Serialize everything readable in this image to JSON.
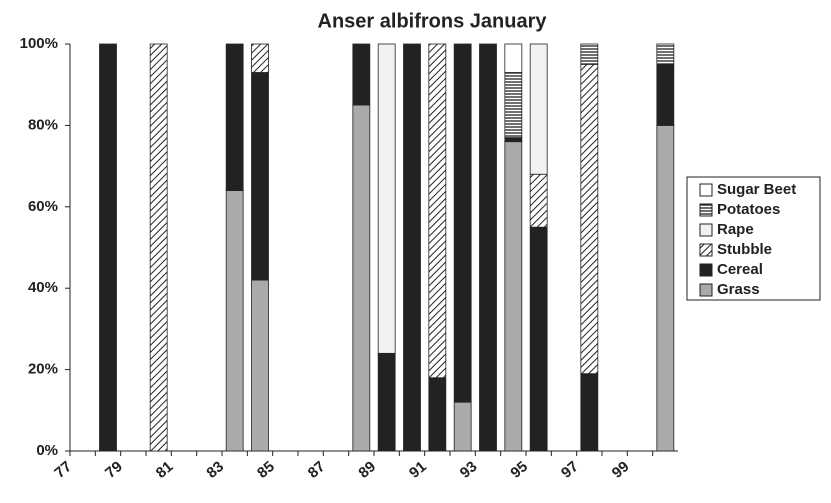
{
  "chart_data": {
    "type": "stacked-bar",
    "title": "Anser albifrons January",
    "categories": [
      "77",
      null,
      "79",
      null,
      "81",
      null,
      "83",
      null,
      "85",
      null,
      "87",
      null,
      "89",
      null,
      "91",
      null,
      "93",
      null,
      "95",
      null,
      "97",
      null,
      "99",
      null
    ],
    "series": [
      {
        "name": "Grass",
        "color": "#aaaaaa",
        "values": [
          null,
          null,
          null,
          null,
          null,
          null,
          64,
          42,
          null,
          null,
          null,
          85,
          null,
          null,
          null,
          12,
          null,
          76,
          null,
          null,
          null,
          null,
          null,
          80
        ]
      },
      {
        "name": "Cereal",
        "color": "#222222",
        "values": [
          null,
          100,
          null,
          null,
          null,
          null,
          36,
          51,
          null,
          null,
          null,
          15,
          24,
          100,
          18,
          88,
          100,
          1,
          55,
          null,
          19,
          null,
          null,
          15
        ]
      },
      {
        "name": "Stubble",
        "color": "#222222",
        "pattern": "diagonal",
        "values": [
          null,
          null,
          null,
          100,
          null,
          null,
          null,
          7,
          null,
          null,
          null,
          null,
          null,
          null,
          82,
          null,
          null,
          null,
          13,
          null,
          76,
          null,
          null,
          null
        ]
      },
      {
        "name": "Rape",
        "color": "#f2f2f2",
        "values": [
          null,
          null,
          null,
          null,
          null,
          null,
          null,
          null,
          null,
          null,
          null,
          null,
          76,
          null,
          null,
          null,
          null,
          null,
          32,
          null,
          null,
          null,
          null,
          null
        ]
      },
      {
        "name": "Potatoes",
        "color": "#222222",
        "pattern": "horizontal",
        "values": [
          null,
          null,
          null,
          null,
          null,
          null,
          null,
          null,
          null,
          null,
          null,
          null,
          null,
          null,
          null,
          null,
          null,
          16,
          null,
          null,
          5,
          null,
          null,
          5
        ]
      },
      {
        "name": "Sugar Beet",
        "color": "#ffffff",
        "values": [
          null,
          null,
          null,
          null,
          null,
          null,
          null,
          null,
          null,
          null,
          null,
          null,
          null,
          null,
          null,
          null,
          null,
          7,
          null,
          null,
          null,
          null,
          null,
          null
        ]
      }
    ],
    "ylim": [
      0,
      100
    ],
    "yticks": [
      {
        "value": 0,
        "label": "0%"
      },
      {
        "value": 20,
        "label": "20%"
      },
      {
        "value": 40,
        "label": "40%"
      },
      {
        "value": 60,
        "label": "60%"
      },
      {
        "value": 80,
        "label": "80%"
      },
      {
        "value": 100,
        "label": "100%"
      }
    ],
    "legend": "right"
  }
}
